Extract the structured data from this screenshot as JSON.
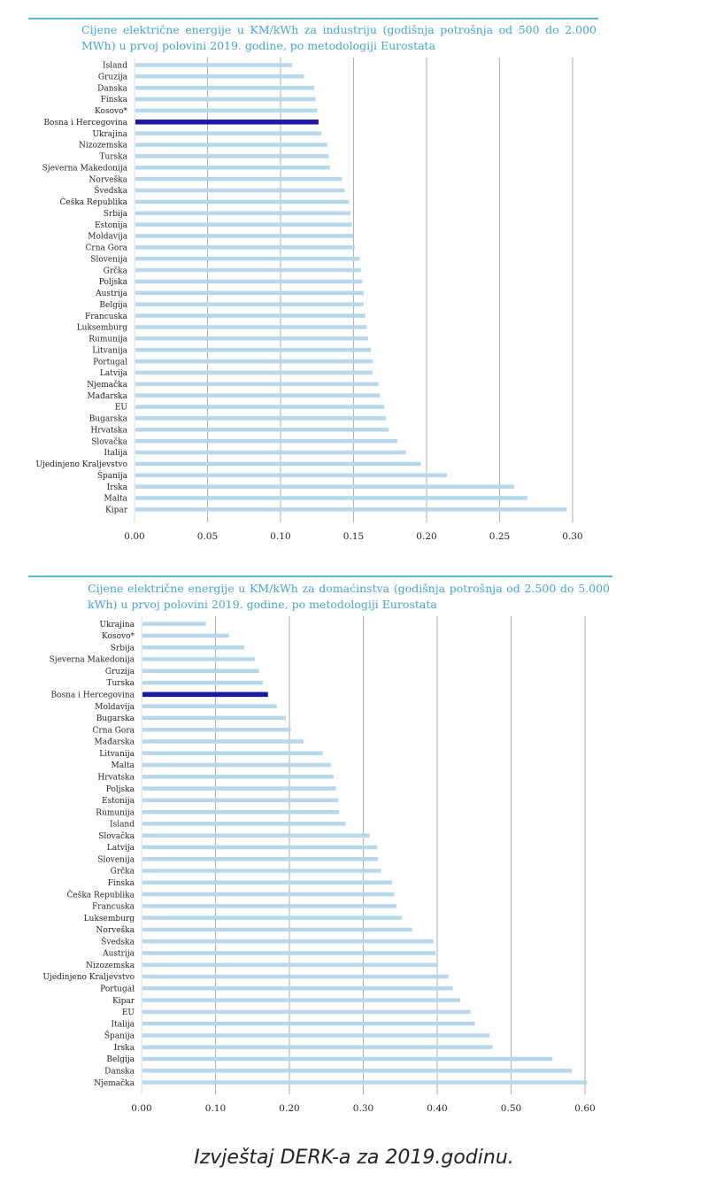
{
  "caption": "Izvještaj DERK-a za 2019.godinu.",
  "colors": {
    "bar": "#b6d8ea",
    "highlight": "#1a1aa6",
    "grid": "#9a9a9a",
    "title": "#44a6c8",
    "rule": "#5fb3d4"
  },
  "chart_data": [
    {
      "type": "bar",
      "orientation": "horizontal",
      "title": "Cijene električne energije u KM/kWh za industriju (godišnja potrošnja od 500 do 2.000 MWh) u prvoj polovini 2019. godine, po metodologiji Eurostata",
      "xlim": [
        0,
        0.3
      ],
      "ticks": [
        "0.00",
        "0.05",
        "0.10",
        "0.15",
        "0.20",
        "0.25",
        "0.30"
      ],
      "highlight": "Bosna i Hercegovina",
      "categories": [
        "Island",
        "Gruzija",
        "Danska",
        "Finska",
        "Kosovo*",
        "Bosna i Hercegovina",
        "Ukrajina",
        "Nizozemska",
        "Turska",
        "Sjeverna Makedonija",
        "Norveška",
        "Švedska",
        "Češka Republika",
        "Srbija",
        "Estonija",
        "Moldavija",
        "Crna Gora",
        "Slovenija",
        "Grčka",
        "Poljska",
        "Austrija",
        "Belgija",
        "Francuska",
        "Luksemburg",
        "Rumunija",
        "Litvanija",
        "Portugal",
        "Latvija",
        "Njemačka",
        "Mađarska",
        "EU",
        "Bugarska",
        "Hrvatska",
        "Slovačka",
        "Italija",
        "Ujedinjeno Kraljevstvo",
        "Španija",
        "Irska",
        "Malta",
        "Kipar"
      ],
      "values": [
        0.108,
        0.116,
        0.123,
        0.124,
        0.125,
        0.126,
        0.128,
        0.132,
        0.133,
        0.134,
        0.142,
        0.144,
        0.147,
        0.148,
        0.149,
        0.15,
        0.151,
        0.154,
        0.155,
        0.156,
        0.157,
        0.157,
        0.158,
        0.159,
        0.16,
        0.162,
        0.163,
        0.163,
        0.167,
        0.168,
        0.171,
        0.172,
        0.174,
        0.18,
        0.186,
        0.196,
        0.214,
        0.26,
        0.269,
        0.296
      ]
    },
    {
      "type": "bar",
      "orientation": "horizontal",
      "title": "Cijene električne energije u KM/kWh za domaćinstva (godišnja potrošnja od 2.500 do 5.000 kWh) u prvoj polovini 2019. godine, po metodologiji Eurostata",
      "xlim": [
        0,
        0.6
      ],
      "ticks": [
        "0.00",
        "0.10",
        "0.20",
        "0.30",
        "0.40",
        "0.50",
        "0.60"
      ],
      "highlight": "Bosna i Hercegovina",
      "categories": [
        "Ukrajina",
        "Kosovo*",
        "Srbija",
        "Sjeverna Makedonija",
        "Gruzija",
        "Turska",
        "Bosna i Hercegovina",
        "Moldavija",
        "Bugarska",
        "Crna Gora",
        "Mađarska",
        "Litvanija",
        "Malta",
        "Hrvatska",
        "Poljska",
        "Estonija",
        "Rumunija",
        "Island",
        "Slovačka",
        "Latvija",
        "Slovenija",
        "Grčka",
        "Finska",
        "Češka Republika",
        "Francuska",
        "Luksemburg",
        "Norveška",
        "Švedska",
        "Austrija",
        "Nizozemska",
        "Ujedinjeno Kraljevstvo",
        "Portugal",
        "Kipar",
        "EU",
        "Italija",
        "Španija",
        "Irska",
        "Belgija",
        "Danska",
        "Njemačka"
      ],
      "values": [
        0.087,
        0.118,
        0.139,
        0.153,
        0.159,
        0.164,
        0.171,
        0.183,
        0.195,
        0.202,
        0.219,
        0.245,
        0.256,
        0.26,
        0.263,
        0.266,
        0.267,
        0.276,
        0.309,
        0.319,
        0.32,
        0.324,
        0.339,
        0.342,
        0.345,
        0.352,
        0.366,
        0.395,
        0.398,
        0.401,
        0.415,
        0.421,
        0.431,
        0.445,
        0.451,
        0.471,
        0.475,
        0.556,
        0.582,
        0.603
      ]
    }
  ]
}
